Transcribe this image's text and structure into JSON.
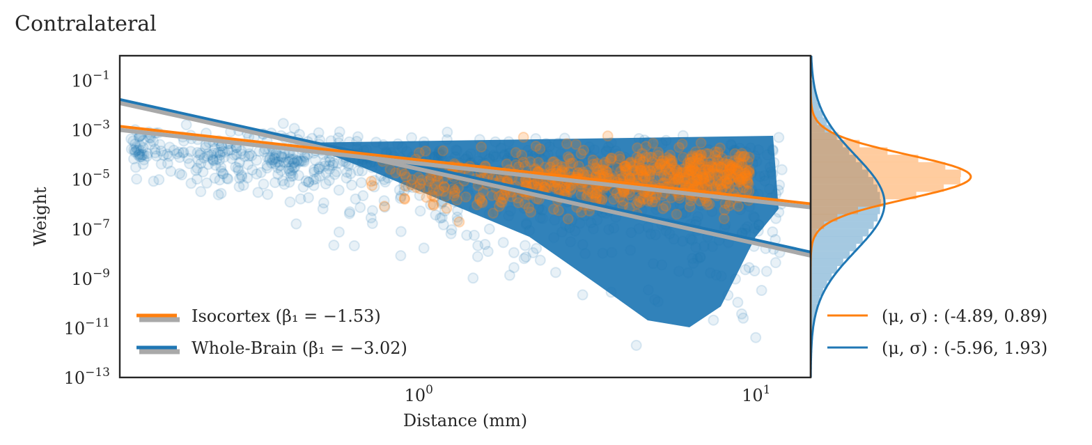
{
  "title": "Contralateral",
  "colors": {
    "isocortex": "#ff7f0e",
    "whole_brain": "#1f77b4",
    "fit_shadow": "#a9a9a9",
    "axes": "#262626"
  },
  "chart_data": [
    {
      "type": "scatter",
      "title": "Contralateral",
      "xlabel": "Distance (mm)",
      "ylabel": "Weight",
      "xscale": "log",
      "yscale": "log",
      "xlim": [
        0.13,
        14.5
      ],
      "ylim": [
        1e-13,
        1
      ],
      "xticks": [
        {
          "value": 1,
          "base": "10",
          "exp": "0"
        },
        {
          "value": 10,
          "base": "10",
          "exp": "1"
        }
      ],
      "yticks": [
        {
          "value": 0.1,
          "base": "10",
          "exp": "−1"
        },
        {
          "value": 0.001,
          "base": "10",
          "exp": "−3"
        },
        {
          "value": 1e-05,
          "base": "10",
          "exp": "−5"
        },
        {
          "value": 1e-07,
          "base": "10",
          "exp": "−7"
        },
        {
          "value": 1e-09,
          "base": "10",
          "exp": "−9"
        },
        {
          "value": 1e-11,
          "base": "10",
          "exp": "−11"
        },
        {
          "value": 1e-13,
          "base": "10",
          "exp": "−13"
        }
      ],
      "grid": false,
      "legend_position": "lower-left",
      "series": [
        {
          "name": "Isocortex",
          "legend_label": "Isocortex (β₁ = −1.53)",
          "slope": -1.53,
          "fit": {
            "x": [
              0.13,
              14.5
            ],
            "y": [
              0.0014,
              1.04e-06
            ]
          },
          "cloud": {
            "x_range": [
              0.7,
              9.5
            ],
            "y_center_log": -4.9,
            "y_spread_log": 0.9
          }
        },
        {
          "name": "Whole-Brain",
          "legend_label": "Whole-Brain (β₁ = −3.02)",
          "slope": -3.02,
          "fit": {
            "x": [
              0.13,
              14.5
            ],
            "y": [
              0.017,
              1.17e-08
            ]
          },
          "cloud": {
            "x_range": [
              0.14,
              12
            ],
            "y_center_log": -6.0,
            "y_spread_log": 1.9
          }
        }
      ]
    },
    {
      "type": "histogram",
      "orientation": "horizontal",
      "shares_y_axis": true,
      "legend_position": "lower-right",
      "series": [
        {
          "name": "Isocortex",
          "legend_label": "(μ, σ) : (-4.89, 0.89)",
          "mu": -4.89,
          "sigma": 0.89
        },
        {
          "name": "Whole-Brain",
          "legend_label": "(μ, σ) : (-5.96, 1.93)",
          "mu": -5.96,
          "sigma": 1.93
        }
      ]
    }
  ]
}
